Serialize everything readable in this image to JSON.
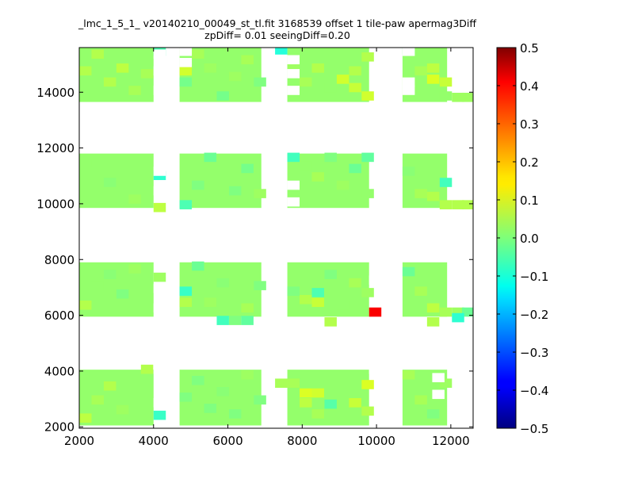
{
  "chart_data": {
    "type": "heatmap",
    "title_lines": [
      "_lmc_1_5_1_ v20140210_00049_st_tl.fit 3168539 offset 1 tile-paw apermag3Diff",
      "zpDiff= 0.01 seeingDiff=0.20"
    ],
    "xlabel": "",
    "ylabel": "",
    "xlim": [
      2000,
      12600
    ],
    "ylim": [
      1950,
      15600
    ],
    "x_ticks": [
      "2000",
      "4000",
      "6000",
      "8000",
      "10000",
      "12000"
    ],
    "y_ticks": [
      "2000",
      "4000",
      "6000",
      "8000",
      "10000",
      "12000",
      "14000"
    ],
    "colorbar": {
      "colormap": "jet",
      "range": [
        -0.5,
        0.5
      ],
      "ticks": [
        "0.5",
        "0.4",
        "0.3",
        "0.2",
        "0.1",
        "0.0",
        "−0.1",
        "−0.2",
        "−0.3",
        "−0.4",
        "−0.5"
      ]
    },
    "cell_size": [
      330,
      330
    ],
    "detector_blocks": {
      "columns": [
        [
          2000,
          4000
        ],
        [
          4700,
          6900
        ],
        [
          7600,
          9800
        ],
        [
          10700,
          11900
        ]
      ],
      "rows": [
        [
          2050,
          4050
        ],
        [
          5950,
          7900
        ],
        [
          9850,
          11800
        ],
        [
          13650,
          15600
        ]
      ],
      "base_value": 0.02,
      "missing_cells": [
        [
          4000,
          15200
        ],
        [
          4000,
          14600
        ],
        [
          4000,
          13900
        ],
        [
          4000,
          11000
        ],
        [
          4000,
          10300
        ],
        [
          4000,
          6800
        ],
        [
          4000,
          6100
        ],
        [
          4000,
          2700
        ],
        [
          9800,
          7100
        ],
        [
          4700,
          15300
        ],
        [
          4700,
          14900
        ],
        [
          7600,
          15000
        ],
        [
          7600,
          14500
        ],
        [
          7600,
          13900
        ],
        [
          7600,
          10500
        ],
        [
          7600,
          9900
        ],
        [
          10700,
          15300
        ],
        [
          10700,
          14200
        ],
        [
          10700,
          13900
        ],
        [
          11500,
          3600
        ],
        [
          11500,
          3000
        ],
        [
          4000,
          3900
        ],
        [
          9800,
          3900
        ]
      ]
    },
    "cells": [
      {
        "x": 2000,
        "y": 2150,
        "v": 0.06
      },
      {
        "x": 2330,
        "y": 2800,
        "v": 0.04
      },
      {
        "x": 2660,
        "y": 3300,
        "v": 0.05
      },
      {
        "x": 3000,
        "y": 2450,
        "v": 0.03
      },
      {
        "x": 3660,
        "y": 3900,
        "v": 0.05
      },
      {
        "x": 4000,
        "y": 2250,
        "v": -0.07
      },
      {
        "x": 4700,
        "y": 2900,
        "v": 0.0
      },
      {
        "x": 5030,
        "y": 3500,
        "v": 0.0
      },
      {
        "x": 5360,
        "y": 2500,
        "v": 0.0
      },
      {
        "x": 5700,
        "y": 3100,
        "v": 0.01
      },
      {
        "x": 6030,
        "y": 2300,
        "v": 0.0
      },
      {
        "x": 6360,
        "y": 3700,
        "v": 0.03
      },
      {
        "x": 6700,
        "y": 2800,
        "v": 0.0
      },
      {
        "x": 7270,
        "y": 3400,
        "v": 0.04
      },
      {
        "x": 7600,
        "y": 3400,
        "v": 0.04
      },
      {
        "x": 7930,
        "y": 3050,
        "v": 0.09
      },
      {
        "x": 8260,
        "y": 3050,
        "v": 0.08
      },
      {
        "x": 7930,
        "y": 2700,
        "v": 0.06
      },
      {
        "x": 8600,
        "y": 2650,
        "v": -0.04
      },
      {
        "x": 8260,
        "y": 2300,
        "v": 0.04
      },
      {
        "x": 9260,
        "y": 2700,
        "v": 0.07
      },
      {
        "x": 9600,
        "y": 3350,
        "v": 0.09
      },
      {
        "x": 9600,
        "y": 2400,
        "v": 0.05
      },
      {
        "x": 10700,
        "y": 3700,
        "v": 0.04
      },
      {
        "x": 11030,
        "y": 2800,
        "v": 0.04
      },
      {
        "x": 11360,
        "y": 2300,
        "v": 0.0
      },
      {
        "x": 11700,
        "y": 3400,
        "v": 0.03
      },
      {
        "x": 2000,
        "y": 6200,
        "v": 0.05
      },
      {
        "x": 2330,
        "y": 6900,
        "v": 0.02
      },
      {
        "x": 2660,
        "y": 7300,
        "v": 0.01
      },
      {
        "x": 3000,
        "y": 6600,
        "v": 0.0
      },
      {
        "x": 3330,
        "y": 7500,
        "v": 0.03
      },
      {
        "x": 4000,
        "y": 7200,
        "v": 0.03
      },
      {
        "x": 4700,
        "y": 6700,
        "v": -0.07
      },
      {
        "x": 4700,
        "y": 6300,
        "v": 0.05
      },
      {
        "x": 5030,
        "y": 7600,
        "v": -0.02
      },
      {
        "x": 5360,
        "y": 6300,
        "v": 0.03
      },
      {
        "x": 5700,
        "y": 7000,
        "v": 0.01
      },
      {
        "x": 6360,
        "y": 6100,
        "v": 0.04
      },
      {
        "x": 6700,
        "y": 6900,
        "v": 0.0
      },
      {
        "x": 5700,
        "y": 5650,
        "v": -0.06
      },
      {
        "x": 6030,
        "y": 5650,
        "v": 0.0
      },
      {
        "x": 6360,
        "y": 5650,
        "v": -0.03
      },
      {
        "x": 7600,
        "y": 6700,
        "v": 0.0
      },
      {
        "x": 7930,
        "y": 6400,
        "v": 0.05
      },
      {
        "x": 8260,
        "y": 6650,
        "v": -0.05
      },
      {
        "x": 8260,
        "y": 6300,
        "v": 0.07
      },
      {
        "x": 8600,
        "y": 7300,
        "v": 0.0
      },
      {
        "x": 8930,
        "y": 6200,
        "v": 0.02
      },
      {
        "x": 9260,
        "y": 7000,
        "v": 0.04
      },
      {
        "x": 9600,
        "y": 6650,
        "v": 0.03
      },
      {
        "x": 9800,
        "y": 5950,
        "v": 0.38
      },
      {
        "x": 8600,
        "y": 5600,
        "v": 0.05
      },
      {
        "x": 10700,
        "y": 7400,
        "v": -0.02
      },
      {
        "x": 11030,
        "y": 6700,
        "v": 0.04
      },
      {
        "x": 11360,
        "y": 6100,
        "v": 0.06
      },
      {
        "x": 11700,
        "y": 5950,
        "v": 0.04
      },
      {
        "x": 11360,
        "y": 5600,
        "v": 0.05
      },
      {
        "x": 12030,
        "y": 5950,
        "v": 0.03
      },
      {
        "x": 12300,
        "y": 5950,
        "v": -0.02
      },
      {
        "x": 12030,
        "y": 5750,
        "v": -0.08
      },
      {
        "x": 2000,
        "y": 11300,
        "v": 0.02
      },
      {
        "x": 2660,
        "y": 10600,
        "v": 0.01
      },
      {
        "x": 3330,
        "y": 10000,
        "v": 0.03
      },
      {
        "x": 4000,
        "y": 10850,
        "v": -0.08
      },
      {
        "x": 4000,
        "y": 9700,
        "v": 0.06
      },
      {
        "x": 4700,
        "y": 9800,
        "v": -0.05
      },
      {
        "x": 5030,
        "y": 10500,
        "v": 0.0
      },
      {
        "x": 5360,
        "y": 11500,
        "v": -0.02
      },
      {
        "x": 6030,
        "y": 10300,
        "v": 0.0
      },
      {
        "x": 6360,
        "y": 11100,
        "v": -0.01
      },
      {
        "x": 6700,
        "y": 10200,
        "v": 0.03
      },
      {
        "x": 7600,
        "y": 11500,
        "v": -0.06
      },
      {
        "x": 7930,
        "y": 11200,
        "v": 0.02
      },
      {
        "x": 8260,
        "y": 10800,
        "v": 0.04
      },
      {
        "x": 8600,
        "y": 11500,
        "v": 0.0
      },
      {
        "x": 8930,
        "y": 10500,
        "v": 0.03
      },
      {
        "x": 9260,
        "y": 11100,
        "v": -0.02
      },
      {
        "x": 9600,
        "y": 11500,
        "v": -0.03
      },
      {
        "x": 9600,
        "y": 10200,
        "v": 0.02
      },
      {
        "x": 10700,
        "y": 11000,
        "v": 0.01
      },
      {
        "x": 11030,
        "y": 10200,
        "v": 0.04
      },
      {
        "x": 11360,
        "y": 10100,
        "v": 0.05
      },
      {
        "x": 11700,
        "y": 10600,
        "v": -0.06
      },
      {
        "x": 11700,
        "y": 9800,
        "v": 0.05
      },
      {
        "x": 12030,
        "y": 9800,
        "v": 0.05
      },
      {
        "x": 12300,
        "y": 9800,
        "v": 0.05
      },
      {
        "x": 2000,
        "y": 14600,
        "v": 0.05
      },
      {
        "x": 2330,
        "y": 15200,
        "v": 0.05
      },
      {
        "x": 2660,
        "y": 14200,
        "v": 0.05
      },
      {
        "x": 3000,
        "y": 14700,
        "v": 0.06
      },
      {
        "x": 3330,
        "y": 13900,
        "v": 0.04
      },
      {
        "x": 3660,
        "y": 14500,
        "v": 0.04
      },
      {
        "x": 4000,
        "y": 15300,
        "v": -0.05
      },
      {
        "x": 4700,
        "y": 14600,
        "v": 0.08
      },
      {
        "x": 4700,
        "y": 14200,
        "v": -0.01
      },
      {
        "x": 5030,
        "y": 15200,
        "v": 0.04
      },
      {
        "x": 5360,
        "y": 14700,
        "v": 0.03
      },
      {
        "x": 5700,
        "y": 13700,
        "v": -0.01
      },
      {
        "x": 6030,
        "y": 14400,
        "v": 0.03
      },
      {
        "x": 6360,
        "y": 15000,
        "v": 0.04
      },
      {
        "x": 6700,
        "y": 14200,
        "v": 0.0
      },
      {
        "x": 7270,
        "y": 15350,
        "v": -0.09
      },
      {
        "x": 7600,
        "y": 14800,
        "v": 0.03
      },
      {
        "x": 7930,
        "y": 14200,
        "v": 0.04
      },
      {
        "x": 8260,
        "y": 14700,
        "v": 0.05
      },
      {
        "x": 8600,
        "y": 14000,
        "v": 0.02
      },
      {
        "x": 8930,
        "y": 14300,
        "v": 0.08
      },
      {
        "x": 9260,
        "y": 14600,
        "v": 0.05
      },
      {
        "x": 9260,
        "y": 14000,
        "v": 0.07
      },
      {
        "x": 9600,
        "y": 13700,
        "v": 0.08
      },
      {
        "x": 9600,
        "y": 15100,
        "v": 0.05
      },
      {
        "x": 10700,
        "y": 15350,
        "v": -0.03
      },
      {
        "x": 11030,
        "y": 14600,
        "v": 0.04
      },
      {
        "x": 11360,
        "y": 14300,
        "v": 0.09
      },
      {
        "x": 11360,
        "y": 14700,
        "v": 0.06
      },
      {
        "x": 11700,
        "y": 14200,
        "v": 0.07
      },
      {
        "x": 11700,
        "y": 13700,
        "v": 0.02
      },
      {
        "x": 12030,
        "y": 13650,
        "v": 0.03
      },
      {
        "x": 12300,
        "y": 13650,
        "v": 0.03
      }
    ]
  }
}
